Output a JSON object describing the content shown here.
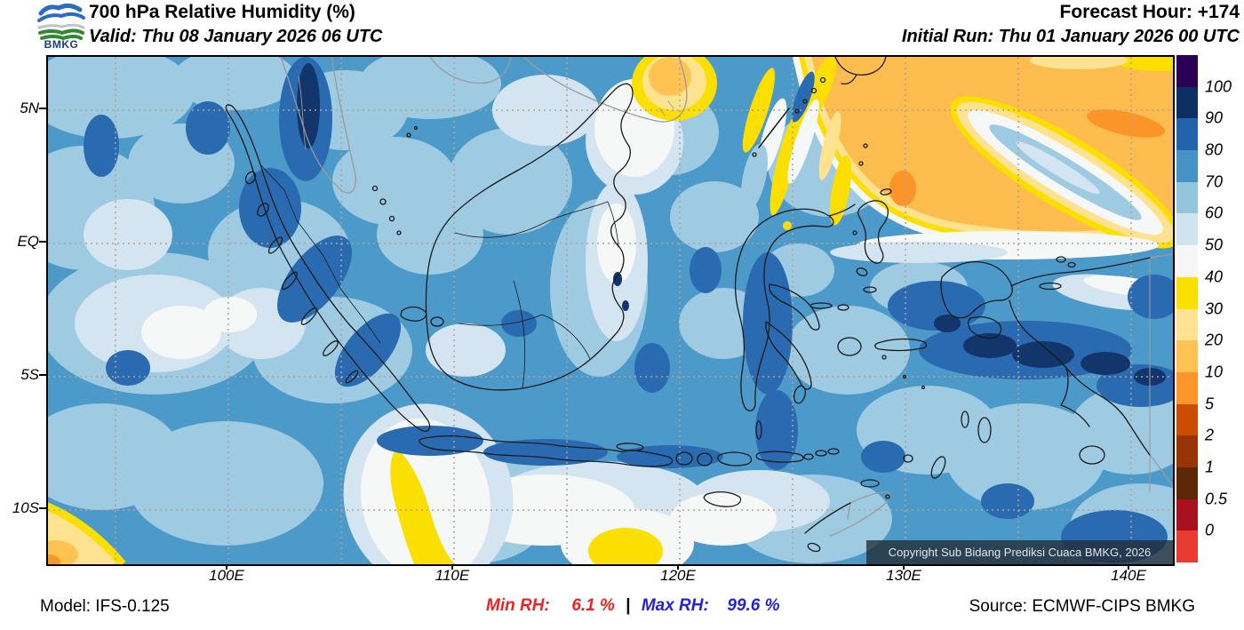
{
  "header": {
    "logo_text": "BMKG",
    "title": "700 hPa Relative Humidity (%)",
    "valid": "Valid: Thu 08 January 2026 06 UTC",
    "forecast_hour": "Forecast Hour: +174",
    "initial_run": "Initial Run: Thu 01 January 2026 00 UTC"
  },
  "map": {
    "copyright": "Copyright Sub Bidang Prediksi Cuaca BMKG, 2026",
    "y_axis_labels": [
      "5N",
      "EQ",
      "5S",
      "10S"
    ],
    "x_axis_labels": [
      "100E",
      "110E",
      "120E",
      "130E",
      "140E"
    ]
  },
  "colorbar": {
    "tick_labels": [
      "100",
      "90",
      "80",
      "70",
      "60",
      "50",
      "40",
      "30",
      "20",
      "10",
      "5",
      "2",
      "1",
      "0.5",
      "0"
    ],
    "segment_colors_top_to_bottom": [
      "#2b0055",
      "#0d3064",
      "#2363ae",
      "#4493c4",
      "#93c5dd",
      "#d2e3f0",
      "#f6f6f6",
      "#f9e000",
      "#fee393",
      "#ffc354",
      "#fd952c",
      "#cc4c02",
      "#993404",
      "#5c2707",
      "#a81220",
      "#e83b32"
    ]
  },
  "footer": {
    "model": "Model: IFS-0.125",
    "min_label": "Min RH:",
    "min_value": "6.1 %",
    "separator": "|",
    "max_label": "Max RH:",
    "max_value": "99.6 %",
    "source": "Source: ECMWF-CIPS BMKG",
    "min_color": "#ee2222",
    "max_color": "#2222dd"
  }
}
